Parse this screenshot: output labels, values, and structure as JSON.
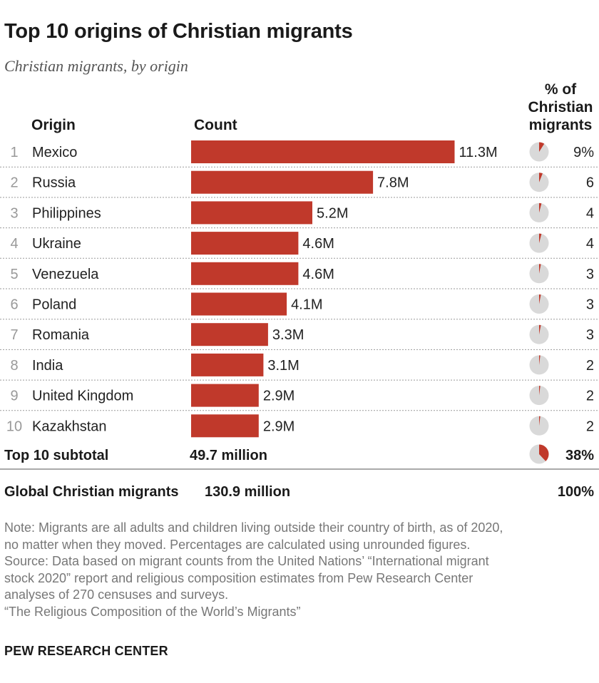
{
  "header": {
    "title": "Top 10 origins of Christian migrants",
    "subtitle": "Christian migrants, by origin"
  },
  "columns": {
    "origin": "Origin",
    "count": "Count",
    "pct_lines": [
      "% of",
      "Christian",
      "migrants"
    ]
  },
  "chart_data": {
    "type": "bar",
    "orientation": "horizontal",
    "title": "Top 10 origins of Christian migrants",
    "subtitle": "Christian migrants, by origin",
    "categories": [
      "Mexico",
      "Russia",
      "Philippines",
      "Ukraine",
      "Venezuela",
      "Poland",
      "Romania",
      "India",
      "United Kingdom",
      "Kazakhstan"
    ],
    "ranks": [
      "1",
      "2",
      "3",
      "4",
      "5",
      "6",
      "7",
      "8",
      "9",
      "10"
    ],
    "values": [
      11.3,
      7.8,
      5.2,
      4.6,
      4.6,
      4.1,
      3.3,
      3.1,
      2.9,
      2.9
    ],
    "value_labels": [
      "11.3M",
      "7.8M",
      "5.2M",
      "4.6M",
      "4.6M",
      "4.1M",
      "3.3M",
      "3.1M",
      "2.9M",
      "2.9M"
    ],
    "unit": "million",
    "shares": [
      9,
      6,
      4,
      4,
      3,
      3,
      3,
      2,
      2,
      2
    ],
    "share_labels": [
      "9%",
      "6",
      "4",
      "4",
      "3",
      "3",
      "3",
      "2",
      "2",
      "2"
    ],
    "subtotal": {
      "label": "Top 10 subtotal",
      "count": "49.7 million",
      "share": 38,
      "share_label": "38%"
    },
    "total": {
      "label": "Global Christian migrants",
      "count": "130.9 million",
      "share_label": "100%"
    },
    "colors": {
      "bar": "#c0392b",
      "pie_bg": "#d9d9d9",
      "pie_fill": "#c0392b"
    }
  },
  "notes": [
    "Note: Migrants are all adults and children living outside their country of birth, as of 2020,",
    "no matter when they moved. Percentages are calculated using unrounded figures.",
    "Source: Data based on migrant counts from the United Nations’ “International migrant",
    "stock 2020” report and religious composition estimates from Pew Research Center",
    "analyses of 270 censuses and surveys.",
    "“The Religious Composition of the World’s Migrants”"
  ],
  "footer": "PEW RESEARCH CENTER"
}
